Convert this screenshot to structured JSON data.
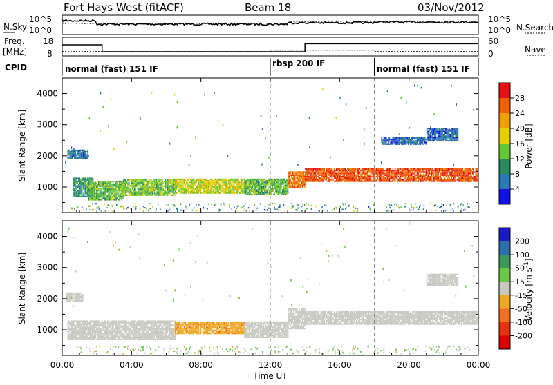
{
  "header": {
    "radar": "Fort Hays West (fitACF)",
    "beam": "Beam 18",
    "date": "03/Nov/2012"
  },
  "left_labels": {
    "nsky": "N.Sky",
    "freq": "Freq.",
    "freq_unit": "[MHz]",
    "cpid": "CPID"
  },
  "right_labels": {
    "nsearch": "N.Search",
    "nave": "Nave"
  },
  "modes": [
    {
      "label": "normal (fast) 151 IF",
      "start_hour": 0
    },
    {
      "label": "rbsp 200 IF",
      "start_hour": 12
    },
    {
      "label": "normal (fast) 151 IF",
      "start_hour": 18
    }
  ],
  "time_axis": {
    "label": "Time UT",
    "ticks": [
      "00:00",
      "04:00",
      "08:00",
      "12:00",
      "16:00",
      "20:00",
      "00:00"
    ]
  },
  "noise_panel": {
    "left_ticks": [
      "10^5",
      "10^0"
    ],
    "right_ticks": [
      "10^5",
      "10^0"
    ]
  },
  "freq_panel": {
    "left_ticks": [
      "18",
      "8"
    ],
    "right_ticks": [
      "60",
      "0"
    ],
    "freq_steps": [
      {
        "from": 0,
        "to": 2.3,
        "mhz": 15.5
      },
      {
        "from": 2.3,
        "to": 14,
        "mhz": 10.5
      },
      {
        "from": 14,
        "to": 24,
        "mhz": 16.3
      }
    ],
    "nave_steps": [
      {
        "from": 0,
        "to": 12,
        "val": 13
      },
      {
        "from": 12,
        "to": 18,
        "val": 18
      },
      {
        "from": 18,
        "to": 24,
        "val": 13
      }
    ]
  },
  "power_colorbar": {
    "label": "Power [dB]",
    "ticks": [
      "4",
      "8",
      "12",
      "16",
      "20",
      "24",
      "28"
    ],
    "colors": [
      "#1010e8",
      "#2a7ab8",
      "#2a8a60",
      "#64c832",
      "#e8d000",
      "#f0a000",
      "#f06000",
      "#e81010"
    ]
  },
  "velocity_colorbar": {
    "label_main": "Velocity",
    "label_unit": "[m s",
    "label_exp": "-1",
    "label_close": "]",
    "ticks": [
      "200",
      "100",
      "50",
      "15",
      "-15",
      "-50",
      "-100",
      "-200"
    ],
    "colors": [
      "#1a1ac8",
      "#2a70b0",
      "#3a9a5a",
      "#6ac848",
      "#c8c8c0",
      "#f0a820",
      "#f07020",
      "#e83010",
      "#e00000"
    ]
  },
  "chart_data": [
    {
      "type": "heatmap",
      "title": "",
      "xlabel": "Time UT",
      "ylabel": "Slant Range [km]",
      "xlim": [
        0,
        24
      ],
      "ylim": [
        180,
        4500
      ],
      "y_ticks": [
        1000,
        2000,
        3000,
        4000
      ],
      "quantity": "Power [dB]",
      "bands": [
        {
          "x0": 0.3,
          "x1": 1.5,
          "r0": 1950,
          "r1": 2200,
          "v": 7
        },
        {
          "x0": 0.6,
          "x1": 1.8,
          "r0": 680,
          "r1": 1300,
          "v": 10
        },
        {
          "x0": 1.5,
          "x1": 3.5,
          "r0": 600,
          "r1": 1200,
          "v": 13
        },
        {
          "x0": 3.5,
          "x1": 6.5,
          "r0": 730,
          "r1": 1250,
          "v": 14
        },
        {
          "x0": 6.5,
          "x1": 10.5,
          "r0": 800,
          "r1": 1270,
          "v": 17
        },
        {
          "x0": 10.5,
          "x1": 13,
          "r0": 750,
          "r1": 1270,
          "v": 13
        },
        {
          "x0": 13,
          "x1": 14,
          "r0": 1000,
          "r1": 1500,
          "v": 25
        },
        {
          "x0": 14,
          "x1": 24,
          "r0": 1200,
          "r1": 1600,
          "v": 27
        },
        {
          "x0": 18.4,
          "x1": 21,
          "r0": 2400,
          "r1": 2600,
          "v": 6
        },
        {
          "x0": 21,
          "x1": 22.8,
          "r0": 2500,
          "r1": 2900,
          "v": 6
        }
      ]
    },
    {
      "type": "heatmap",
      "title": "",
      "xlabel": "Time UT",
      "ylabel": "Slant Range [km]",
      "xlim": [
        0,
        24
      ],
      "ylim": [
        180,
        4500
      ],
      "y_ticks": [
        1000,
        2000,
        3000,
        4000
      ],
      "quantity": "Velocity [m s-1]",
      "bands": [
        {
          "x0": 0.2,
          "x1": 1.2,
          "r0": 1950,
          "r1": 2200,
          "v": 0
        },
        {
          "x0": 0.3,
          "x1": 6.5,
          "r0": 700,
          "r1": 1300,
          "v": 0
        },
        {
          "x0": 6.5,
          "x1": 10.5,
          "r0": 900,
          "r1": 1250,
          "v": -40
        },
        {
          "x0": 10.5,
          "x1": 13,
          "r0": 750,
          "r1": 1270,
          "v": 0
        },
        {
          "x0": 13,
          "x1": 14,
          "r0": 1050,
          "r1": 1700,
          "v": 0
        },
        {
          "x0": 14,
          "x1": 24,
          "r0": 1200,
          "r1": 1600,
          "v": 0
        },
        {
          "x0": 21,
          "x1": 22.8,
          "r0": 2450,
          "r1": 2800,
          "v": 0
        }
      ]
    }
  ]
}
